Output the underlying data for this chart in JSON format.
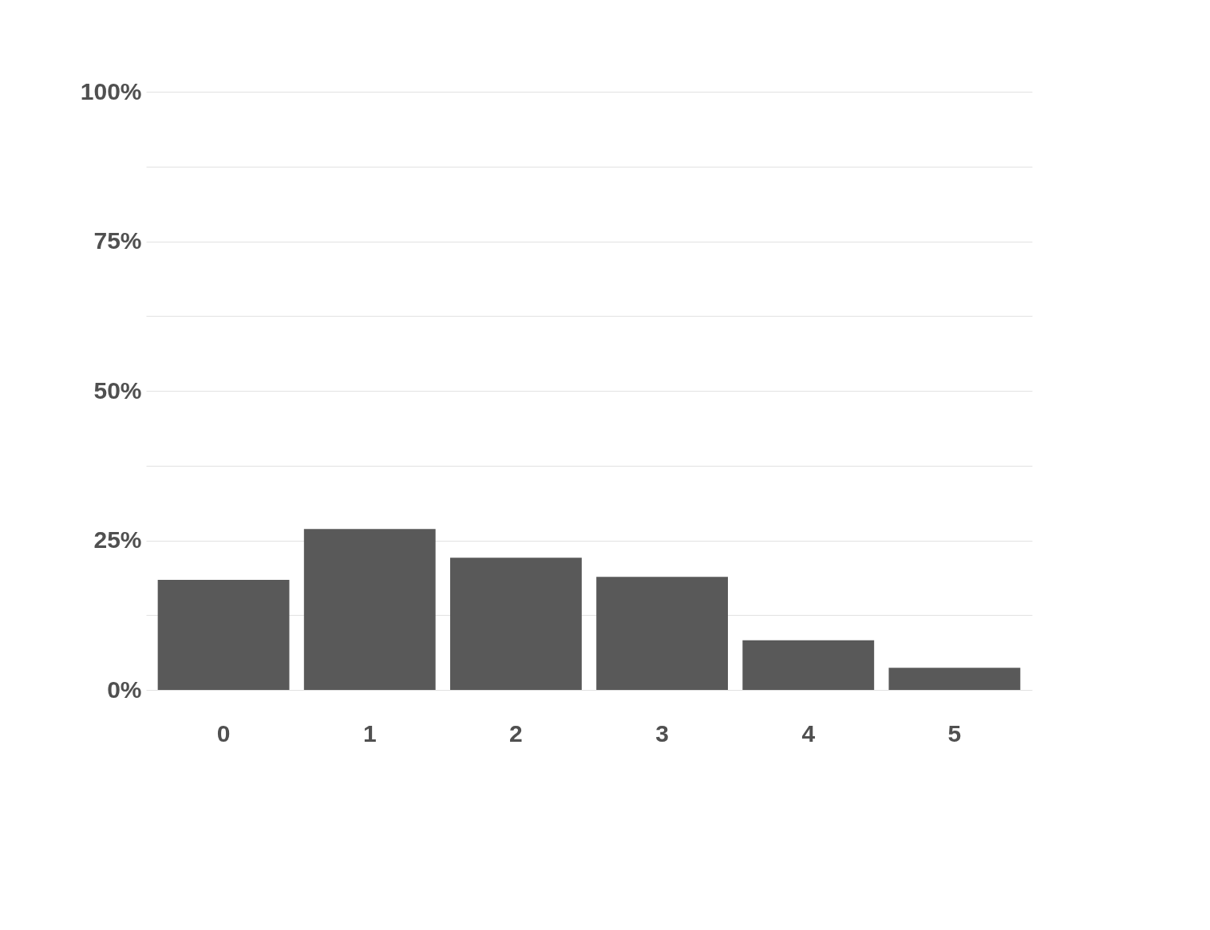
{
  "chart_data": {
    "type": "bar",
    "categories": [
      "0",
      "1",
      "2",
      "3",
      "4",
      "5"
    ],
    "values": [
      18.4,
      26.9,
      22.1,
      18.9,
      8.3,
      3.7
    ],
    "color": "#595959",
    "ylim": [
      0,
      100
    ],
    "yticks": [
      {
        "value": 0,
        "label": "0%"
      },
      {
        "value": 12.5,
        "label": null
      },
      {
        "value": 25,
        "label": "25%"
      },
      {
        "value": 37.5,
        "label": null
      },
      {
        "value": 50,
        "label": "50%"
      },
      {
        "value": 62.5,
        "label": null
      },
      {
        "value": 75,
        "label": "75%"
      },
      {
        "value": 87.5,
        "label": null
      },
      {
        "value": 100,
        "label": "100%"
      }
    ],
    "grid": "y"
  }
}
